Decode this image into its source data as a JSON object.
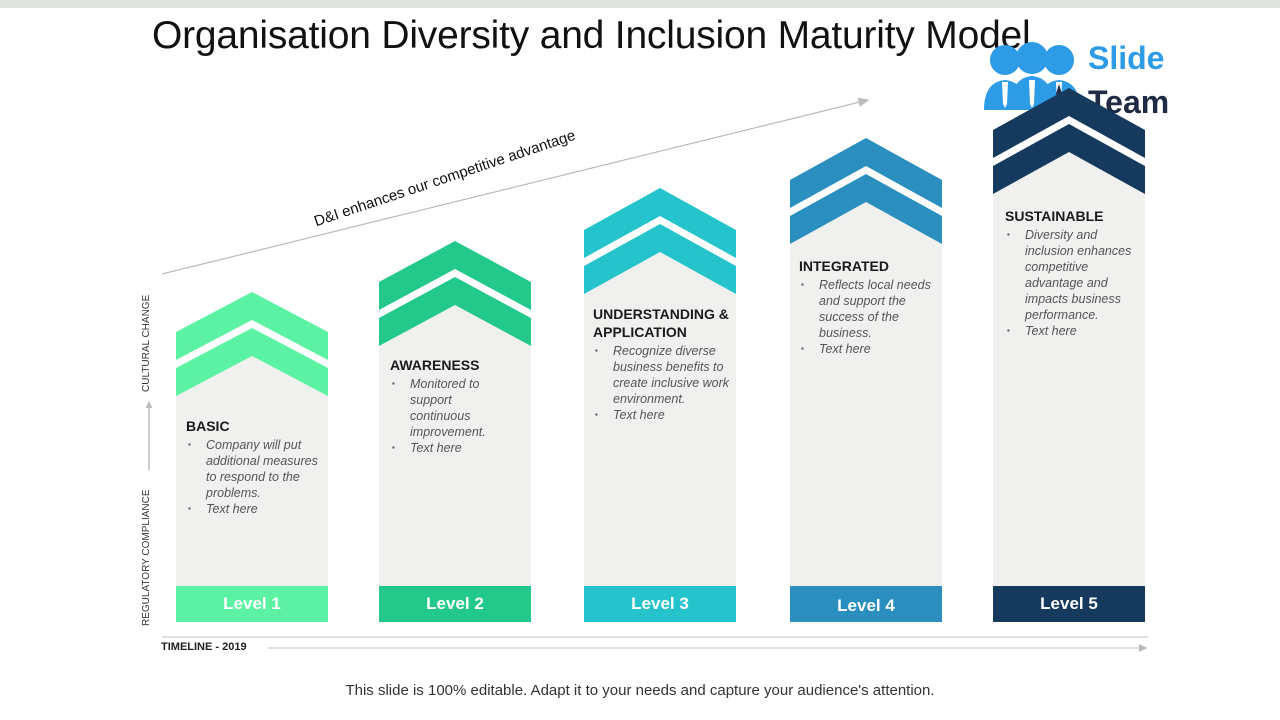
{
  "title": "Organisation Diversity and Inclusion Maturity Model",
  "logo": {
    "line1": "Slide",
    "line2": "Team"
  },
  "diagonal_label": "D&I enhances our competitive advantage",
  "y_axis": {
    "lower": "REGULATORY  COMPLIANCE",
    "upper": "CULTURAL CHANGE"
  },
  "x_axis": {
    "label": "TIMELINE  - 2019"
  },
  "levels": [
    {
      "level": "Level 1",
      "heading": "BASIC",
      "bullets": [
        "Company will put additional measures to respond to the problems.",
        "Text here"
      ],
      "color": "#5cf2a3"
    },
    {
      "level": "Level 2",
      "heading": "AWARENESS",
      "bullets": [
        "Monitored to support continuous improvement.",
        "Text here"
      ],
      "color": "#22c98a"
    },
    {
      "level": "Level 3",
      "heading": "UNDERSTANDING & APPLICATION",
      "bullets": [
        "Recognize diverse business benefits to create inclusive work environment.",
        "Text here"
      ],
      "color": "#25c4cc"
    },
    {
      "level": "Level 4",
      "heading": "INTEGRATED",
      "bullets": [
        "Reflects local needs and support the success of the business.",
        "Text here"
      ],
      "color": "#2a8fbf"
    },
    {
      "level": "Level 5",
      "heading": "SUSTAINABLE",
      "bullets": [
        "Diversity and inclusion enhances competitive advantage and impacts business performance.",
        "Text here"
      ],
      "color": "#153a5e"
    }
  ],
  "footer": "This slide is 100% editable. Adapt it to your needs and capture your audience's attention."
}
